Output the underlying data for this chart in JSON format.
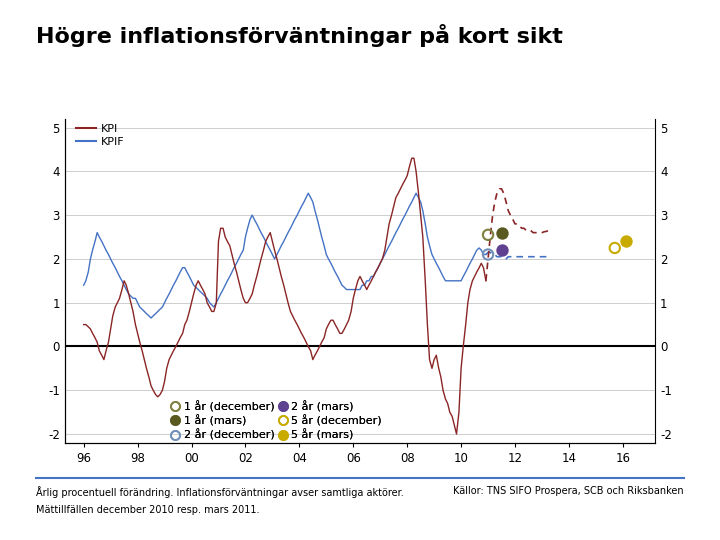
{
  "title": "Högre inflationsförväntningar på kort sikt",
  "subtitle_footer": "Årlig procentuell förändring. Inflationsförväntningar avser samtliga aktörer.",
  "subtitle_footer2": "Mättillfällen december 2010 resp. mars 2011.",
  "source_footer": "Källor: TNS SIFO Prospera, SCB och Riksbanken",
  "ylim": [
    -2.2,
    5.2
  ],
  "yticks": [
    -2,
    -1,
    0,
    1,
    2,
    3,
    4,
    5
  ],
  "xlim_left": 1995.3,
  "xlim_right": 2017.2,
  "xticks_year": [
    1996,
    1998,
    2000,
    2002,
    2004,
    2006,
    2008,
    2010,
    2012,
    2014,
    2016
  ],
  "xtick_labels": [
    "96",
    "98",
    "00",
    "02",
    "04",
    "06",
    "08",
    "10",
    "12",
    "14",
    "16"
  ],
  "kpi_color": "#8B2525",
  "kpif_color": "#4472C4",
  "background_color": "#FFFFFF",
  "grid_color": "#BBBBBB",
  "dec_1yr_color": "#808040",
  "dec_2yr_color": "#7090B8",
  "dec_5yr_color": "#C8AA00",
  "mars_1yr_color": "#5A5A20",
  "mars_2yr_color": "#604090",
  "mars_5yr_color": "#C8AA00",
  "logo_color": "#003F7F",
  "scatter_dec_1yr_x": 2011.0,
  "scatter_dec_1yr_y": 2.55,
  "scatter_dec_2yr_x": 2011.0,
  "scatter_dec_2yr_y": 2.1,
  "scatter_dec_5yr_x": 2015.7,
  "scatter_dec_5yr_y": 2.25,
  "scatter_mars_1yr_x": 2011.5,
  "scatter_mars_1yr_y": 2.6,
  "scatter_mars_2yr_x": 2011.5,
  "scatter_mars_2yr_y": 2.2,
  "scatter_mars_5yr_x": 2016.1,
  "scatter_mars_5yr_y": 2.4,
  "kpi_data": [
    [
      1996.0,
      0.5
    ],
    [
      1996.08,
      0.5
    ],
    [
      1996.17,
      0.45
    ],
    [
      1996.25,
      0.4
    ],
    [
      1996.33,
      0.3
    ],
    [
      1996.42,
      0.2
    ],
    [
      1996.5,
      0.1
    ],
    [
      1996.58,
      -0.1
    ],
    [
      1996.67,
      -0.2
    ],
    [
      1996.75,
      -0.3
    ],
    [
      1996.83,
      -0.1
    ],
    [
      1996.92,
      0.1
    ],
    [
      1997.0,
      0.4
    ],
    [
      1997.08,
      0.7
    ],
    [
      1997.17,
      0.9
    ],
    [
      1997.25,
      1.0
    ],
    [
      1997.33,
      1.1
    ],
    [
      1997.42,
      1.3
    ],
    [
      1997.5,
      1.5
    ],
    [
      1997.58,
      1.4
    ],
    [
      1997.67,
      1.2
    ],
    [
      1997.75,
      1.0
    ],
    [
      1997.83,
      0.8
    ],
    [
      1997.92,
      0.5
    ],
    [
      1998.0,
      0.3
    ],
    [
      1998.08,
      0.1
    ],
    [
      1998.17,
      -0.1
    ],
    [
      1998.25,
      -0.3
    ],
    [
      1998.33,
      -0.5
    ],
    [
      1998.42,
      -0.7
    ],
    [
      1998.5,
      -0.9
    ],
    [
      1998.58,
      -1.0
    ],
    [
      1998.67,
      -1.1
    ],
    [
      1998.75,
      -1.15
    ],
    [
      1998.83,
      -1.1
    ],
    [
      1998.92,
      -1.0
    ],
    [
      1999.0,
      -0.8
    ],
    [
      1999.08,
      -0.5
    ],
    [
      1999.17,
      -0.3
    ],
    [
      1999.25,
      -0.2
    ],
    [
      1999.33,
      -0.1
    ],
    [
      1999.42,
      0.0
    ],
    [
      1999.5,
      0.1
    ],
    [
      1999.58,
      0.2
    ],
    [
      1999.67,
      0.3
    ],
    [
      1999.75,
      0.5
    ],
    [
      1999.83,
      0.6
    ],
    [
      1999.92,
      0.8
    ],
    [
      2000.0,
      1.0
    ],
    [
      2000.08,
      1.2
    ],
    [
      2000.17,
      1.4
    ],
    [
      2000.25,
      1.5
    ],
    [
      2000.33,
      1.4
    ],
    [
      2000.42,
      1.3
    ],
    [
      2000.5,
      1.2
    ],
    [
      2000.58,
      1.0
    ],
    [
      2000.67,
      0.9
    ],
    [
      2000.75,
      0.8
    ],
    [
      2000.83,
      0.8
    ],
    [
      2000.92,
      1.0
    ],
    [
      2001.0,
      2.4
    ],
    [
      2001.08,
      2.7
    ],
    [
      2001.17,
      2.7
    ],
    [
      2001.25,
      2.5
    ],
    [
      2001.33,
      2.4
    ],
    [
      2001.42,
      2.3
    ],
    [
      2001.5,
      2.1
    ],
    [
      2001.58,
      1.9
    ],
    [
      2001.67,
      1.7
    ],
    [
      2001.75,
      1.5
    ],
    [
      2001.83,
      1.3
    ],
    [
      2001.92,
      1.1
    ],
    [
      2002.0,
      1.0
    ],
    [
      2002.08,
      1.0
    ],
    [
      2002.17,
      1.1
    ],
    [
      2002.25,
      1.2
    ],
    [
      2002.33,
      1.4
    ],
    [
      2002.42,
      1.6
    ],
    [
      2002.5,
      1.8
    ],
    [
      2002.58,
      2.0
    ],
    [
      2002.67,
      2.2
    ],
    [
      2002.75,
      2.4
    ],
    [
      2002.83,
      2.5
    ],
    [
      2002.92,
      2.6
    ],
    [
      2003.0,
      2.4
    ],
    [
      2003.08,
      2.2
    ],
    [
      2003.17,
      2.0
    ],
    [
      2003.25,
      1.8
    ],
    [
      2003.33,
      1.6
    ],
    [
      2003.42,
      1.4
    ],
    [
      2003.5,
      1.2
    ],
    [
      2003.58,
      1.0
    ],
    [
      2003.67,
      0.8
    ],
    [
      2003.75,
      0.7
    ],
    [
      2003.83,
      0.6
    ],
    [
      2003.92,
      0.5
    ],
    [
      2004.0,
      0.4
    ],
    [
      2004.08,
      0.3
    ],
    [
      2004.17,
      0.2
    ],
    [
      2004.25,
      0.1
    ],
    [
      2004.33,
      0.0
    ],
    [
      2004.42,
      -0.1
    ],
    [
      2004.5,
      -0.3
    ],
    [
      2004.58,
      -0.2
    ],
    [
      2004.67,
      -0.1
    ],
    [
      2004.75,
      0.0
    ],
    [
      2004.83,
      0.1
    ],
    [
      2004.92,
      0.2
    ],
    [
      2005.0,
      0.4
    ],
    [
      2005.08,
      0.5
    ],
    [
      2005.17,
      0.6
    ],
    [
      2005.25,
      0.6
    ],
    [
      2005.33,
      0.5
    ],
    [
      2005.42,
      0.4
    ],
    [
      2005.5,
      0.3
    ],
    [
      2005.58,
      0.3
    ],
    [
      2005.67,
      0.4
    ],
    [
      2005.75,
      0.5
    ],
    [
      2005.83,
      0.6
    ],
    [
      2005.92,
      0.8
    ],
    [
      2006.0,
      1.1
    ],
    [
      2006.08,
      1.3
    ],
    [
      2006.17,
      1.5
    ],
    [
      2006.25,
      1.6
    ],
    [
      2006.33,
      1.5
    ],
    [
      2006.42,
      1.4
    ],
    [
      2006.5,
      1.3
    ],
    [
      2006.58,
      1.4
    ],
    [
      2006.67,
      1.5
    ],
    [
      2006.75,
      1.6
    ],
    [
      2006.83,
      1.7
    ],
    [
      2006.92,
      1.8
    ],
    [
      2007.0,
      1.9
    ],
    [
      2007.08,
      2.0
    ],
    [
      2007.17,
      2.2
    ],
    [
      2007.25,
      2.5
    ],
    [
      2007.33,
      2.8
    ],
    [
      2007.42,
      3.0
    ],
    [
      2007.5,
      3.2
    ],
    [
      2007.58,
      3.4
    ],
    [
      2007.67,
      3.5
    ],
    [
      2007.75,
      3.6
    ],
    [
      2007.83,
      3.7
    ],
    [
      2007.92,
      3.8
    ],
    [
      2008.0,
      3.9
    ],
    [
      2008.08,
      4.1
    ],
    [
      2008.17,
      4.3
    ],
    [
      2008.25,
      4.3
    ],
    [
      2008.33,
      4.0
    ],
    [
      2008.42,
      3.5
    ],
    [
      2008.5,
      3.0
    ],
    [
      2008.58,
      2.5
    ],
    [
      2008.67,
      1.5
    ],
    [
      2008.75,
      0.5
    ],
    [
      2008.83,
      -0.3
    ],
    [
      2008.92,
      -0.5
    ],
    [
      2009.0,
      -0.3
    ],
    [
      2009.08,
      -0.2
    ],
    [
      2009.17,
      -0.5
    ],
    [
      2009.25,
      -0.7
    ],
    [
      2009.33,
      -1.0
    ],
    [
      2009.42,
      -1.2
    ],
    [
      2009.5,
      -1.3
    ],
    [
      2009.58,
      -1.5
    ],
    [
      2009.67,
      -1.6
    ],
    [
      2009.75,
      -1.8
    ],
    [
      2009.83,
      -2.0
    ],
    [
      2009.92,
      -1.5
    ],
    [
      2010.0,
      -0.5
    ],
    [
      2010.08,
      0.0
    ],
    [
      2010.17,
      0.5
    ],
    [
      2010.25,
      1.0
    ],
    [
      2010.33,
      1.3
    ],
    [
      2010.42,
      1.5
    ],
    [
      2010.5,
      1.6
    ],
    [
      2010.58,
      1.7
    ],
    [
      2010.67,
      1.8
    ],
    [
      2010.75,
      1.9
    ],
    [
      2010.83,
      1.8
    ],
    [
      2010.92,
      1.5
    ]
  ],
  "kpif_data": [
    [
      1996.0,
      1.4
    ],
    [
      1996.08,
      1.5
    ],
    [
      1996.17,
      1.7
    ],
    [
      1996.25,
      2.0
    ],
    [
      1996.33,
      2.2
    ],
    [
      1996.42,
      2.4
    ],
    [
      1996.5,
      2.6
    ],
    [
      1996.58,
      2.5
    ],
    [
      1996.67,
      2.4
    ],
    [
      1996.75,
      2.3
    ],
    [
      1996.83,
      2.2
    ],
    [
      1996.92,
      2.1
    ],
    [
      1997.0,
      2.0
    ],
    [
      1997.08,
      1.9
    ],
    [
      1997.17,
      1.8
    ],
    [
      1997.25,
      1.7
    ],
    [
      1997.33,
      1.6
    ],
    [
      1997.42,
      1.5
    ],
    [
      1997.5,
      1.4
    ],
    [
      1997.58,
      1.3
    ],
    [
      1997.67,
      1.2
    ],
    [
      1997.75,
      1.15
    ],
    [
      1997.83,
      1.1
    ],
    [
      1997.92,
      1.1
    ],
    [
      1998.0,
      1.0
    ],
    [
      1998.08,
      0.9
    ],
    [
      1998.17,
      0.85
    ],
    [
      1998.25,
      0.8
    ],
    [
      1998.33,
      0.75
    ],
    [
      1998.42,
      0.7
    ],
    [
      1998.5,
      0.65
    ],
    [
      1998.58,
      0.7
    ],
    [
      1998.67,
      0.75
    ],
    [
      1998.75,
      0.8
    ],
    [
      1998.83,
      0.85
    ],
    [
      1998.92,
      0.9
    ],
    [
      1999.0,
      1.0
    ],
    [
      1999.08,
      1.1
    ],
    [
      1999.17,
      1.2
    ],
    [
      1999.25,
      1.3
    ],
    [
      1999.33,
      1.4
    ],
    [
      1999.42,
      1.5
    ],
    [
      1999.5,
      1.6
    ],
    [
      1999.58,
      1.7
    ],
    [
      1999.67,
      1.8
    ],
    [
      1999.75,
      1.8
    ],
    [
      1999.83,
      1.7
    ],
    [
      1999.92,
      1.6
    ],
    [
      2000.0,
      1.5
    ],
    [
      2000.08,
      1.4
    ],
    [
      2000.17,
      1.35
    ],
    [
      2000.25,
      1.3
    ],
    [
      2000.33,
      1.25
    ],
    [
      2000.42,
      1.2
    ],
    [
      2000.5,
      1.15
    ],
    [
      2000.58,
      1.1
    ],
    [
      2000.67,
      1.0
    ],
    [
      2000.75,
      0.95
    ],
    [
      2000.83,
      0.9
    ],
    [
      2000.92,
      1.0
    ],
    [
      2001.0,
      1.1
    ],
    [
      2001.08,
      1.2
    ],
    [
      2001.17,
      1.3
    ],
    [
      2001.25,
      1.4
    ],
    [
      2001.33,
      1.5
    ],
    [
      2001.42,
      1.6
    ],
    [
      2001.5,
      1.7
    ],
    [
      2001.58,
      1.8
    ],
    [
      2001.67,
      1.9
    ],
    [
      2001.75,
      2.0
    ],
    [
      2001.83,
      2.1
    ],
    [
      2001.92,
      2.2
    ],
    [
      2002.0,
      2.5
    ],
    [
      2002.08,
      2.7
    ],
    [
      2002.17,
      2.9
    ],
    [
      2002.25,
      3.0
    ],
    [
      2002.33,
      2.9
    ],
    [
      2002.42,
      2.8
    ],
    [
      2002.5,
      2.7
    ],
    [
      2002.58,
      2.6
    ],
    [
      2002.67,
      2.5
    ],
    [
      2002.75,
      2.4
    ],
    [
      2002.83,
      2.3
    ],
    [
      2002.92,
      2.2
    ],
    [
      2003.0,
      2.1
    ],
    [
      2003.08,
      2.0
    ],
    [
      2003.17,
      2.1
    ],
    [
      2003.25,
      2.2
    ],
    [
      2003.33,
      2.3
    ],
    [
      2003.42,
      2.4
    ],
    [
      2003.5,
      2.5
    ],
    [
      2003.58,
      2.6
    ],
    [
      2003.67,
      2.7
    ],
    [
      2003.75,
      2.8
    ],
    [
      2003.83,
      2.9
    ],
    [
      2003.92,
      3.0
    ],
    [
      2004.0,
      3.1
    ],
    [
      2004.08,
      3.2
    ],
    [
      2004.17,
      3.3
    ],
    [
      2004.25,
      3.4
    ],
    [
      2004.33,
      3.5
    ],
    [
      2004.42,
      3.4
    ],
    [
      2004.5,
      3.3
    ],
    [
      2004.58,
      3.1
    ],
    [
      2004.67,
      2.9
    ],
    [
      2004.75,
      2.7
    ],
    [
      2004.83,
      2.5
    ],
    [
      2004.92,
      2.3
    ],
    [
      2005.0,
      2.1
    ],
    [
      2005.08,
      2.0
    ],
    [
      2005.17,
      1.9
    ],
    [
      2005.25,
      1.8
    ],
    [
      2005.33,
      1.7
    ],
    [
      2005.42,
      1.6
    ],
    [
      2005.5,
      1.5
    ],
    [
      2005.58,
      1.4
    ],
    [
      2005.67,
      1.35
    ],
    [
      2005.75,
      1.3
    ],
    [
      2005.83,
      1.3
    ],
    [
      2005.92,
      1.3
    ],
    [
      2006.0,
      1.3
    ],
    [
      2006.08,
      1.3
    ],
    [
      2006.17,
      1.3
    ],
    [
      2006.25,
      1.3
    ],
    [
      2006.33,
      1.4
    ],
    [
      2006.42,
      1.4
    ],
    [
      2006.5,
      1.5
    ],
    [
      2006.58,
      1.5
    ],
    [
      2006.67,
      1.6
    ],
    [
      2006.75,
      1.6
    ],
    [
      2006.83,
      1.7
    ],
    [
      2006.92,
      1.8
    ],
    [
      2007.0,
      1.9
    ],
    [
      2007.08,
      2.0
    ],
    [
      2007.17,
      2.1
    ],
    [
      2007.25,
      2.2
    ],
    [
      2007.33,
      2.3
    ],
    [
      2007.42,
      2.4
    ],
    [
      2007.5,
      2.5
    ],
    [
      2007.58,
      2.6
    ],
    [
      2007.67,
      2.7
    ],
    [
      2007.75,
      2.8
    ],
    [
      2007.83,
      2.9
    ],
    [
      2007.92,
      3.0
    ],
    [
      2008.0,
      3.1
    ],
    [
      2008.08,
      3.2
    ],
    [
      2008.17,
      3.3
    ],
    [
      2008.25,
      3.4
    ],
    [
      2008.33,
      3.5
    ],
    [
      2008.42,
      3.4
    ],
    [
      2008.5,
      3.3
    ],
    [
      2008.58,
      3.1
    ],
    [
      2008.67,
      2.8
    ],
    [
      2008.75,
      2.5
    ],
    [
      2008.83,
      2.3
    ],
    [
      2008.92,
      2.1
    ],
    [
      2009.0,
      2.0
    ],
    [
      2009.08,
      1.9
    ],
    [
      2009.17,
      1.8
    ],
    [
      2009.25,
      1.7
    ],
    [
      2009.33,
      1.6
    ],
    [
      2009.42,
      1.5
    ],
    [
      2009.5,
      1.5
    ],
    [
      2009.58,
      1.5
    ],
    [
      2009.67,
      1.5
    ],
    [
      2009.75,
      1.5
    ],
    [
      2009.83,
      1.5
    ],
    [
      2009.92,
      1.5
    ],
    [
      2010.0,
      1.5
    ],
    [
      2010.08,
      1.6
    ],
    [
      2010.17,
      1.7
    ],
    [
      2010.25,
      1.8
    ],
    [
      2010.33,
      1.9
    ],
    [
      2010.42,
      2.0
    ],
    [
      2010.5,
      2.1
    ],
    [
      2010.58,
      2.2
    ],
    [
      2010.67,
      2.25
    ],
    [
      2010.75,
      2.2
    ],
    [
      2010.83,
      2.1
    ],
    [
      2010.92,
      2.1
    ]
  ],
  "kpi_forecast": [
    [
      2010.92,
      1.5
    ],
    [
      2011.0,
      2.0
    ],
    [
      2011.08,
      2.5
    ],
    [
      2011.17,
      3.0
    ],
    [
      2011.25,
      3.3
    ],
    [
      2011.33,
      3.5
    ],
    [
      2011.42,
      3.6
    ],
    [
      2011.5,
      3.6
    ],
    [
      2011.58,
      3.5
    ],
    [
      2011.67,
      3.3
    ],
    [
      2011.75,
      3.1
    ],
    [
      2011.83,
      3.0
    ],
    [
      2011.92,
      2.9
    ],
    [
      2012.0,
      2.8
    ],
    [
      2012.08,
      2.8
    ],
    [
      2012.17,
      2.75
    ],
    [
      2012.25,
      2.7
    ],
    [
      2012.33,
      2.7
    ],
    [
      2012.42,
      2.65
    ],
    [
      2012.5,
      2.65
    ],
    [
      2012.58,
      2.65
    ],
    [
      2012.67,
      2.6
    ],
    [
      2012.75,
      2.6
    ],
    [
      2012.83,
      2.6
    ],
    [
      2012.92,
      2.6
    ],
    [
      2013.0,
      2.6
    ],
    [
      2013.08,
      2.62
    ],
    [
      2013.17,
      2.63
    ],
    [
      2013.25,
      2.65
    ]
  ],
  "kpif_forecast": [
    [
      2010.92,
      2.1
    ],
    [
      2011.0,
      2.15
    ],
    [
      2011.08,
      2.15
    ],
    [
      2011.17,
      2.1
    ],
    [
      2011.25,
      2.1
    ],
    [
      2011.33,
      2.05
    ],
    [
      2011.42,
      2.05
    ],
    [
      2011.5,
      2.05
    ],
    [
      2011.58,
      2.0
    ],
    [
      2011.67,
      2.0
    ],
    [
      2011.75,
      2.05
    ],
    [
      2011.83,
      2.05
    ],
    [
      2011.92,
      2.05
    ],
    [
      2012.0,
      2.05
    ],
    [
      2012.08,
      2.05
    ],
    [
      2012.17,
      2.05
    ],
    [
      2012.25,
      2.05
    ],
    [
      2012.33,
      2.05
    ],
    [
      2012.42,
      2.05
    ],
    [
      2012.5,
      2.05
    ],
    [
      2012.58,
      2.05
    ],
    [
      2012.67,
      2.05
    ],
    [
      2012.75,
      2.05
    ],
    [
      2012.83,
      2.05
    ],
    [
      2012.92,
      2.05
    ],
    [
      2013.0,
      2.05
    ],
    [
      2013.08,
      2.05
    ],
    [
      2013.17,
      2.05
    ],
    [
      2013.25,
      2.05
    ]
  ]
}
